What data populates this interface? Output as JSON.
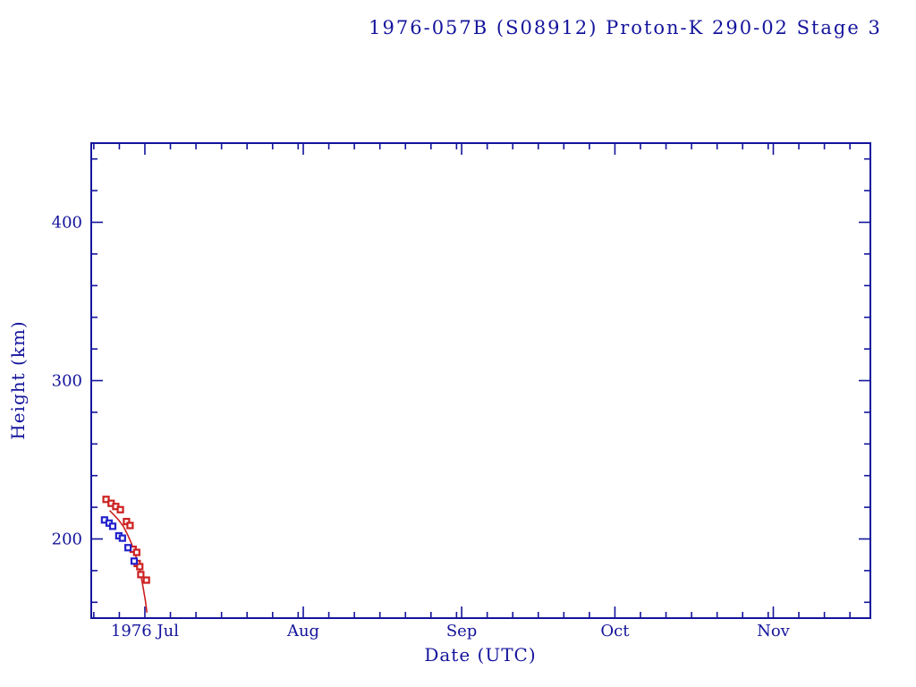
{
  "page": {
    "background": "#ffffff"
  },
  "chart_data": {
    "type": "scatter",
    "title": "1976-057B (S08912) Proton-K 290-02 Stage 3",
    "xlabel": "Date (UTC)",
    "ylabel": "Height (km)",
    "x_unit": "days since 1976 Jul 1 (UTC)",
    "x_domain": [
      -10.5,
      142.0
    ],
    "y_domain": [
      150,
      450
    ],
    "grid": false,
    "legend": "none",
    "x_major_ticks": [
      {
        "label": "1976 Jul",
        "d": 0
      },
      {
        "label": "Aug",
        "d": 31
      },
      {
        "label": "Sep",
        "d": 62
      },
      {
        "label": "Oct",
        "d": 92
      },
      {
        "label": "Nov",
        "d": 123
      }
    ],
    "x_minor_ticks": [
      -10,
      -5,
      5,
      10,
      15,
      20,
      25,
      30,
      36,
      41,
      46,
      51,
      56,
      61,
      67,
      72,
      77,
      82,
      87,
      97,
      102,
      107,
      112,
      117,
      122,
      128,
      133,
      138
    ],
    "y_major_ticks": [
      200,
      300,
      400
    ],
    "y_minor_ticks": [
      160,
      180,
      220,
      240,
      260,
      280,
      320,
      340,
      360,
      380,
      420,
      440
    ],
    "colors": {
      "axis": "#14149c",
      "text": "#14149c",
      "apogee": "#cc2020",
      "perigee": "#2222cc",
      "fit": "#cc2020"
    },
    "series": [
      {
        "name": "apogee-height",
        "kind": "scatter",
        "marker": "open-square",
        "color_key": "apogee",
        "points": [
          [
            -7.6,
            225.0
          ],
          [
            -6.6,
            222.5
          ],
          [
            -5.7,
            220.5
          ],
          [
            -4.8,
            218.5
          ],
          [
            -3.6,
            211.0
          ],
          [
            -2.9,
            208.5
          ],
          [
            -2.3,
            193.5
          ],
          [
            -1.6,
            191.5
          ],
          [
            -1.5,
            184.5
          ],
          [
            -1.0,
            182.5
          ],
          [
            -0.8,
            177.5
          ],
          [
            0.3,
            174.0
          ]
        ]
      },
      {
        "name": "perigee-height",
        "kind": "scatter",
        "marker": "open-square",
        "color_key": "perigee",
        "points": [
          [
            -7.9,
            212.0
          ],
          [
            -7.0,
            210.0
          ],
          [
            -6.3,
            208.0
          ],
          [
            -5.1,
            202.0
          ],
          [
            -4.4,
            200.5
          ],
          [
            -3.3,
            194.5
          ],
          [
            -2.1,
            186.0
          ]
        ]
      },
      {
        "name": "decay-fit-curve",
        "kind": "line",
        "color_key": "fit",
        "points": [
          [
            -6.9,
            218.0
          ],
          [
            -6.0,
            215.0
          ],
          [
            -5.1,
            211.8
          ],
          [
            -4.2,
            207.9
          ],
          [
            -3.4,
            202.8
          ],
          [
            -2.7,
            197.7
          ],
          [
            -2.0,
            191.5
          ],
          [
            -1.3,
            184.2
          ],
          [
            -0.8,
            177.5
          ],
          [
            -0.3,
            168.5
          ],
          [
            0.1,
            161.0
          ],
          [
            0.4,
            153.5
          ]
        ]
      }
    ]
  }
}
